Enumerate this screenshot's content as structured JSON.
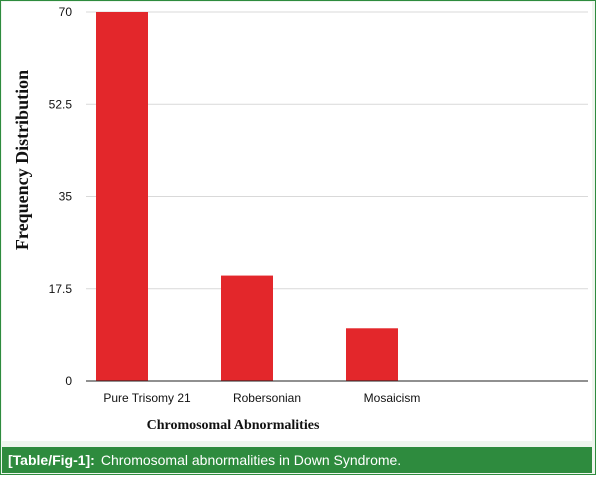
{
  "chart_data": {
    "type": "bar",
    "categories": [
      "Pure Trisomy 21",
      "Robersonian",
      "Mosaicism"
    ],
    "values": [
      70,
      20,
      10
    ],
    "xlabel": "Chromosomal Abnormalities",
    "ylabel": "Frequency Distribution",
    "ylim": [
      0,
      70
    ],
    "yticks": [
      "0",
      "17.5",
      "35",
      "52.5",
      "70"
    ],
    "grid": true,
    "bar_color": "#e3272b"
  },
  "caption": {
    "label": "[Table/Fig-1]:",
    "text": "Chromosomal abnormalities in Down Syndrome."
  },
  "colors": {
    "accent": "#2e8b3e",
    "gridline": "#d9d9d9"
  }
}
